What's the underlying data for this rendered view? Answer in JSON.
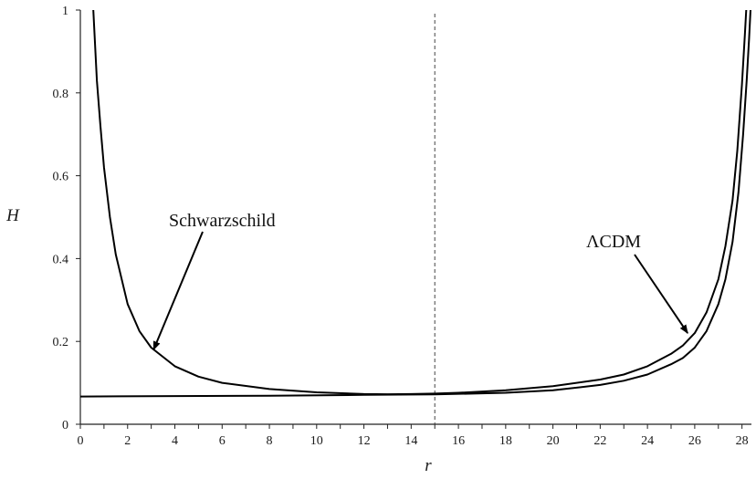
{
  "chart_data": {
    "type": "line",
    "title": "",
    "xlabel": "r",
    "ylabel": "H",
    "xlim": [
      0,
      28.4
    ],
    "ylim": [
      0,
      1
    ],
    "grid": false,
    "x_ticks": [
      "0",
      "2",
      "4",
      "6",
      "8",
      "10",
      "12",
      "14",
      "16",
      "18",
      "20",
      "22",
      "24",
      "26",
      "28"
    ],
    "y_ticks": [
      "0",
      "0.2",
      "0.4",
      "0.6",
      "0.8",
      "1"
    ],
    "reference_line": {
      "x": 15,
      "style": "dashed"
    },
    "annotations": [
      {
        "text": "Schwarzschild",
        "arrow_to": {
          "x": 3.1,
          "y": 0.18
        }
      },
      {
        "text": "ΛCDM",
        "arrow_to": {
          "x": 25.7,
          "y": 0.22
        }
      }
    ],
    "series": [
      {
        "points": [
          [
            0.55,
            1.0
          ],
          [
            0.7,
            0.83
          ],
          [
            0.85,
            0.72
          ],
          [
            1.0,
            0.62
          ],
          [
            1.25,
            0.5
          ],
          [
            1.5,
            0.41
          ],
          [
            2.0,
            0.29
          ],
          [
            2.5,
            0.225
          ],
          [
            3.0,
            0.185
          ],
          [
            4.0,
            0.14
          ],
          [
            5.0,
            0.115
          ],
          [
            6.0,
            0.1
          ],
          [
            8.0,
            0.085
          ],
          [
            10.0,
            0.077
          ],
          [
            12.0,
            0.073
          ],
          [
            13.0,
            0.0725
          ],
          [
            14.0,
            0.073
          ],
          [
            15.0,
            0.074
          ],
          [
            16.0,
            0.076
          ],
          [
            18.0,
            0.082
          ],
          [
            20.0,
            0.092
          ],
          [
            22.0,
            0.108
          ],
          [
            23.0,
            0.12
          ],
          [
            24.0,
            0.14
          ],
          [
            25.0,
            0.17
          ],
          [
            25.5,
            0.19
          ],
          [
            26.0,
            0.22
          ],
          [
            26.5,
            0.27
          ],
          [
            27.0,
            0.35
          ],
          [
            27.3,
            0.43
          ],
          [
            27.6,
            0.54
          ],
          [
            27.8,
            0.66
          ],
          [
            28.0,
            0.82
          ],
          [
            28.12,
            0.94
          ],
          [
            28.18,
            1.0
          ]
        ]
      },
      {
        "points": [
          [
            0.0,
            0.067
          ],
          [
            4.0,
            0.068
          ],
          [
            8.0,
            0.069
          ],
          [
            12.0,
            0.071
          ],
          [
            15.0,
            0.072
          ],
          [
            18.0,
            0.076
          ],
          [
            20.0,
            0.082
          ],
          [
            22.0,
            0.095
          ],
          [
            23.0,
            0.105
          ],
          [
            24.0,
            0.12
          ],
          [
            25.0,
            0.145
          ],
          [
            25.5,
            0.16
          ],
          [
            26.0,
            0.185
          ],
          [
            26.5,
            0.225
          ],
          [
            27.0,
            0.29
          ],
          [
            27.3,
            0.35
          ],
          [
            27.6,
            0.44
          ],
          [
            27.85,
            0.56
          ],
          [
            28.05,
            0.7
          ],
          [
            28.2,
            0.83
          ],
          [
            28.3,
            0.93
          ],
          [
            28.36,
            1.0
          ]
        ]
      }
    ]
  }
}
